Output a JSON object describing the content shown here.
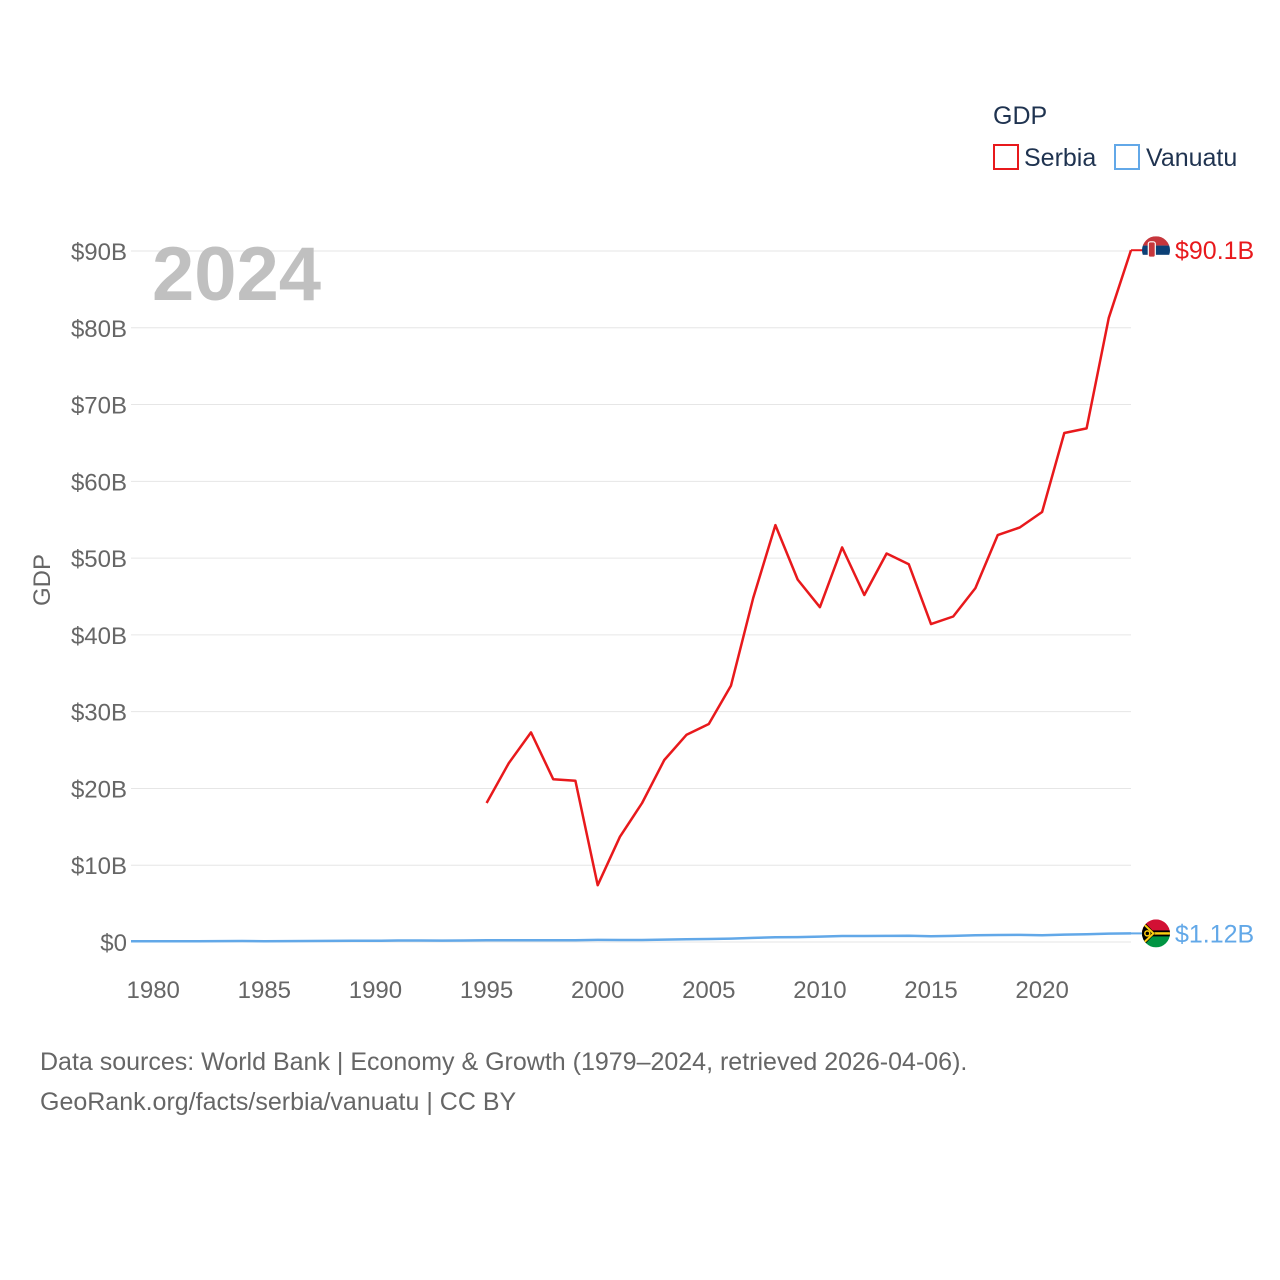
{
  "chart_data": {
    "type": "line",
    "legend_title": "GDP",
    "ylabel": "GDP",
    "year_overlay": "2024",
    "ylim": [
      0,
      90000000000
    ],
    "xlim": [
      1979,
      2024
    ],
    "y_ticks": [
      {
        "value": 0,
        "label": "$0"
      },
      {
        "value": 10000000000,
        "label": "$10B"
      },
      {
        "value": 20000000000,
        "label": "$20B"
      },
      {
        "value": 30000000000,
        "label": "$30B"
      },
      {
        "value": 40000000000,
        "label": "$40B"
      },
      {
        "value": 50000000000,
        "label": "$50B"
      },
      {
        "value": 60000000000,
        "label": "$60B"
      },
      {
        "value": 70000000000,
        "label": "$70B"
      },
      {
        "value": 80000000000,
        "label": "$80B"
      },
      {
        "value": 90000000000,
        "label": "$90B"
      }
    ],
    "x_ticks": [
      {
        "value": 1980,
        "label": "1980"
      },
      {
        "value": 1985,
        "label": "1985"
      },
      {
        "value": 1990,
        "label": "1990"
      },
      {
        "value": 1995,
        "label": "1995"
      },
      {
        "value": 2000,
        "label": "2000"
      },
      {
        "value": 2005,
        "label": "2005"
      },
      {
        "value": 2010,
        "label": "2010"
      },
      {
        "value": 2015,
        "label": "2015"
      },
      {
        "value": 2020,
        "label": "2020"
      }
    ],
    "series": [
      {
        "name": "Serbia",
        "color": "#e8191c",
        "end_label": "$90.1B",
        "x": [
          1995,
          1996,
          1997,
          1998,
          1999,
          2000,
          2001,
          2002,
          2003,
          2004,
          2005,
          2006,
          2007,
          2008,
          2009,
          2010,
          2011,
          2012,
          2013,
          2014,
          2015,
          2016,
          2017,
          2018,
          2019,
          2020,
          2021,
          2022,
          2023,
          2024
        ],
        "values": [
          18100000000,
          23300000000,
          27300000000,
          21200000000,
          21000000000,
          7400000000,
          13700000000,
          18100000000,
          23700000000,
          27000000000,
          28400000000,
          33400000000,
          44800000000,
          54300000000,
          47200000000,
          43600000000,
          51400000000,
          45200000000,
          50600000000,
          49200000000,
          41400000000,
          42400000000,
          46100000000,
          53000000000,
          54000000000,
          56000000000,
          66300000000,
          66900000000,
          81300000000,
          90100000000
        ]
      },
      {
        "name": "Vanuatu",
        "color": "#62a8e8",
        "end_label": "$1.12B",
        "x": [
          1979,
          1980,
          1981,
          1982,
          1983,
          1984,
          1985,
          1986,
          1987,
          1988,
          1989,
          1990,
          1991,
          1992,
          1993,
          1994,
          1995,
          1996,
          1997,
          1998,
          1999,
          2000,
          2001,
          2002,
          2003,
          2004,
          2005,
          2006,
          2007,
          2008,
          2009,
          2010,
          2011,
          2012,
          2013,
          2014,
          2015,
          2016,
          2017,
          2018,
          2019,
          2020,
          2021,
          2022,
          2023,
          2024
        ],
        "values": [
          100000000,
          110000000,
          100000000,
          110000000,
          120000000,
          130000000,
          110000000,
          120000000,
          130000000,
          140000000,
          150000000,
          160000000,
          190000000,
          190000000,
          180000000,
          190000000,
          220000000,
          230000000,
          240000000,
          230000000,
          240000000,
          270000000,
          260000000,
          260000000,
          310000000,
          360000000,
          390000000,
          440000000,
          530000000,
          610000000,
          640000000,
          700000000,
          780000000,
          780000000,
          800000000,
          810000000,
          740000000,
          790000000,
          880000000,
          910000000,
          930000000,
          890000000,
          960000000,
          1020000000,
          1090000000,
          1120000000
        ]
      }
    ],
    "footer": {
      "line1": "Data sources: World Bank | Economy & Growth (1979–2024, retrieved 2026-04-06).",
      "line2": "GeoRank.org/facts/serbia/vanuatu | CC BY"
    }
  }
}
